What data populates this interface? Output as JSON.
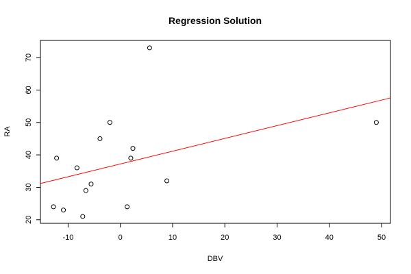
{
  "chart_data": {
    "type": "scatter",
    "title": "Regression Solution",
    "x_label": "DBV",
    "y_label": "RA",
    "x": [
      -12.8,
      -12.2,
      -10.9,
      -8.3,
      -7.2,
      -6.6,
      -5.6,
      -3.9,
      -2.0,
      1.3,
      2.0,
      2.4,
      5.6,
      8.9,
      49.0
    ],
    "y": [
      24,
      39,
      23,
      36,
      21,
      29,
      31,
      45,
      50,
      24,
      39,
      42,
      73,
      32,
      50
    ],
    "color": "#000000",
    "regression": {
      "intercept": 37.2,
      "slope": 0.394,
      "color": "#ff0000"
    },
    "xlim": [
      -15.3,
      51.7
    ],
    "ylim": [
      18.9,
      75.3
    ],
    "xticks": [
      -10,
      0,
      10,
      20,
      30,
      40,
      50
    ],
    "yticks": [
      20,
      30,
      40,
      50,
      60,
      70
    ]
  }
}
